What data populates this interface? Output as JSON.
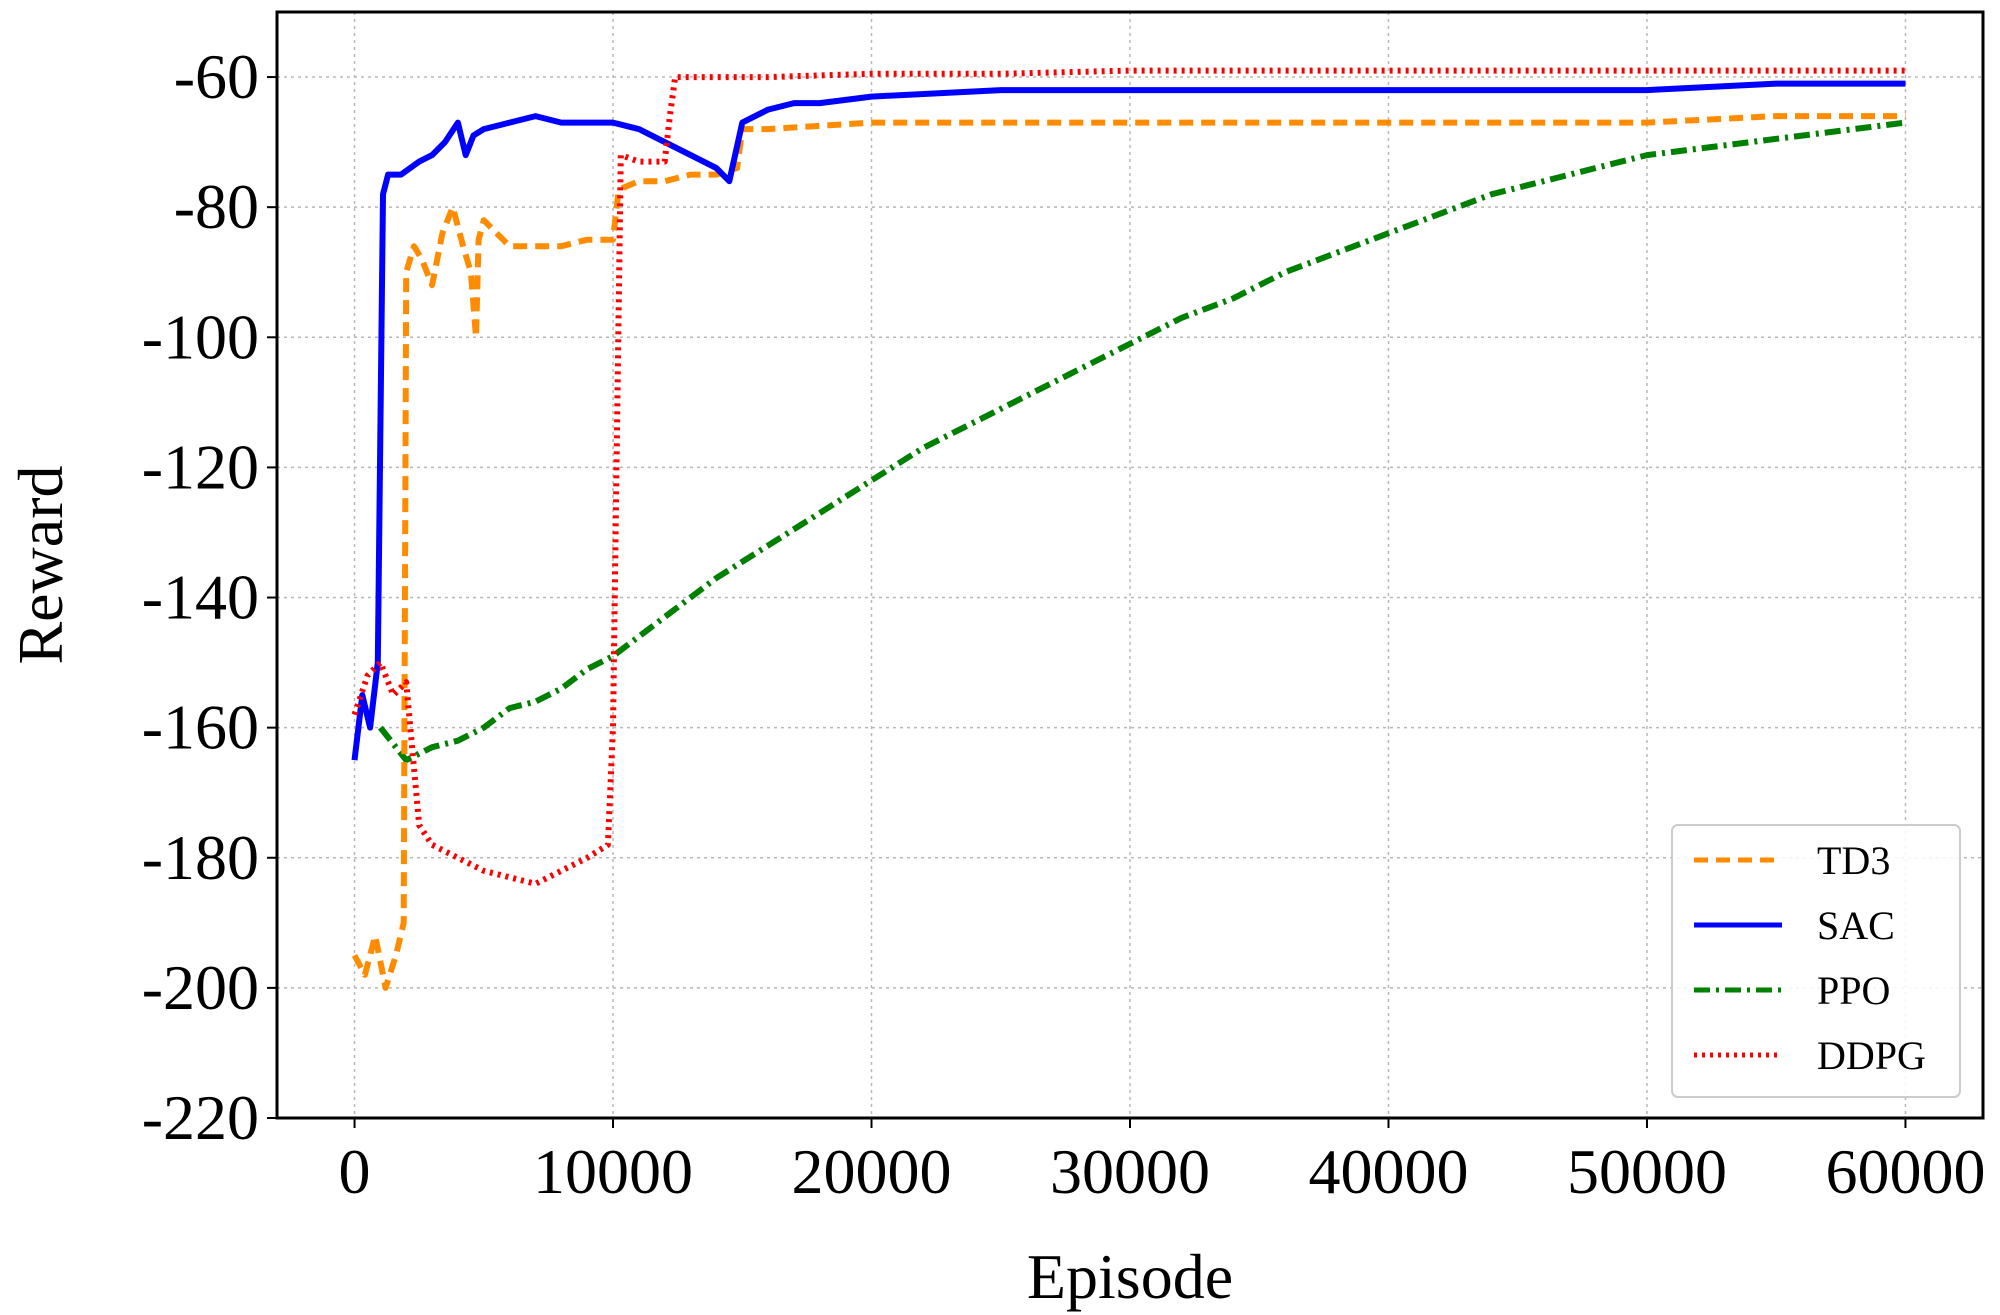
{
  "chart_data": {
    "type": "line",
    "title": "",
    "xlabel": "Episode",
    "ylabel": "Reward",
    "xlim": [
      -3000,
      63000
    ],
    "ylim": [
      -220,
      -50
    ],
    "xticks": [
      0,
      10000,
      20000,
      30000,
      40000,
      50000,
      60000
    ],
    "xtick_labels": [
      "0",
      "10000",
      "20000",
      "30000",
      "40000",
      "50000",
      "60000"
    ],
    "yticks": [
      -220,
      -200,
      -180,
      -160,
      -140,
      -120,
      -100,
      -80,
      -60
    ],
    "ytick_labels": [
      "-220",
      "-200",
      "-180",
      "-160",
      "-140",
      "-120",
      "-100",
      "-80",
      "-60"
    ],
    "grid": true,
    "legend_position": "lower-right",
    "series": [
      {
        "name": "TD3",
        "color": "#ff8c00",
        "style": "dashed",
        "x": [
          0,
          400,
          800,
          1200,
          1600,
          1900,
          2000,
          2300,
          2600,
          3000,
          3400,
          3800,
          4200,
          4500,
          4700,
          4800,
          5000,
          5500,
          6000,
          7000,
          8000,
          9000,
          10000,
          10200,
          10400,
          11000,
          12000,
          13000,
          14000,
          14800,
          15000,
          16000,
          20000,
          25000,
          30000,
          35000,
          40000,
          45000,
          50000,
          55000,
          60000
        ],
        "y": [
          -195,
          -198,
          -192,
          -200,
          -195,
          -190,
          -90,
          -86,
          -88,
          -92,
          -84,
          -80,
          -86,
          -90,
          -100,
          -85,
          -82,
          -84,
          -86,
          -86,
          -86,
          -85,
          -85,
          -78,
          -77,
          -76,
          -76,
          -75,
          -75,
          -74,
          -68,
          -68,
          -67,
          -67,
          -67,
          -67,
          -67,
          -67,
          -67,
          -66,
          -66
        ]
      },
      {
        "name": "SAC",
        "color": "#0000ff",
        "style": "solid",
        "x": [
          0,
          300,
          600,
          900,
          1100,
          1300,
          1800,
          2500,
          3000,
          3500,
          4000,
          4300,
          4600,
          5000,
          6000,
          7000,
          8000,
          9000,
          10000,
          11000,
          12000,
          13000,
          14000,
          14500,
          15000,
          16000,
          17000,
          18000,
          20000,
          25000,
          30000,
          35000,
          40000,
          45000,
          50000,
          55000,
          60000
        ],
        "y": [
          -165,
          -155,
          -160,
          -150,
          -78,
          -75,
          -75,
          -73,
          -72,
          -70,
          -67,
          -72,
          -69,
          -68,
          -67,
          -66,
          -67,
          -67,
          -67,
          -68,
          -70,
          -72,
          -74,
          -76,
          -67,
          -65,
          -64,
          -64,
          -63,
          -62,
          -62,
          -62,
          -62,
          -62,
          -62,
          -61,
          -61
        ]
      },
      {
        "name": "PPO",
        "color": "#008000",
        "style": "dashdot",
        "x": [
          1000,
          2000,
          3000,
          4000,
          5000,
          6000,
          7000,
          8000,
          9000,
          10000,
          12000,
          14000,
          16000,
          18000,
          20000,
          22000,
          24000,
          26000,
          28000,
          30000,
          32000,
          34000,
          36000,
          38000,
          40000,
          42000,
          44000,
          46000,
          48000,
          50000,
          52000,
          54000,
          56000,
          58000,
          60000
        ],
        "y": [
          -160,
          -165,
          -163,
          -162,
          -160,
          -157,
          -156,
          -154,
          -151,
          -149,
          -143,
          -137,
          -132,
          -127,
          -122,
          -117,
          -113,
          -109,
          -105,
          -101,
          -97,
          -94,
          -90,
          -87,
          -84,
          -81,
          -78,
          -76,
          -74,
          -72,
          -71,
          -70,
          -69,
          -68,
          -67
        ]
      },
      {
        "name": "DDPG",
        "color": "#ff0000",
        "style": "dotted",
        "x": [
          0,
          500,
          1000,
          1500,
          2000,
          2500,
          3000,
          4000,
          5000,
          6000,
          7000,
          8000,
          9000,
          9800,
          10000,
          10100,
          10300,
          11000,
          12000,
          12200,
          12400,
          13000,
          16000,
          20000,
          25000,
          30000,
          35000,
          40000,
          45000,
          50000,
          55000,
          60000
        ],
        "y": [
          -158,
          -152,
          -150,
          -155,
          -153,
          -175,
          -178,
          -180,
          -182,
          -183,
          -184,
          -182,
          -180,
          -178,
          -160,
          -130,
          -72,
          -73,
          -73,
          -66,
          -60,
          -60,
          -60,
          -59.5,
          -59.5,
          -59,
          -59,
          -59,
          -59,
          -59,
          -59,
          -59
        ]
      }
    ]
  }
}
